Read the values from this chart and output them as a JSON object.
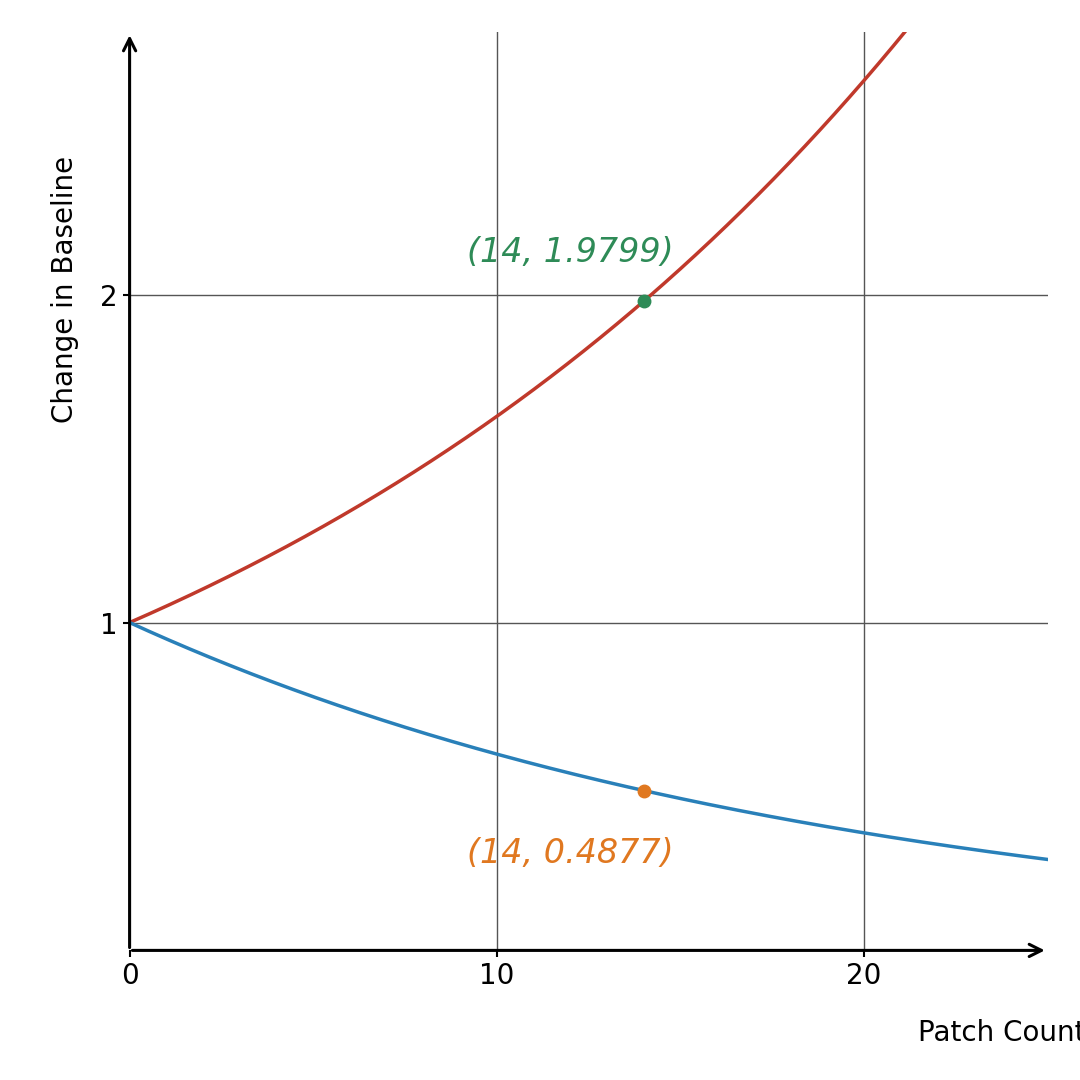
{
  "title": "",
  "xlabel": "Patch Count",
  "ylabel": "Change in Baseline",
  "x_min": 0,
  "x_max": 25,
  "y_min": 0,
  "y_max": 2.8,
  "x_ticks": [
    0,
    10,
    20
  ],
  "y_ticks": [
    1,
    2
  ],
  "growth_rate": 0.05,
  "decay_rate": 0.05,
  "highlight_x": 14,
  "green_point": [
    14,
    1.9799
  ],
  "orange_point": [
    14,
    0.4877
  ],
  "green_label": "(14, 1.9799)",
  "orange_label": "(14, 0.4877)",
  "red_color": "#c0392b",
  "blue_color": "#2980b9",
  "green_color": "#2e8b57",
  "orange_color": "#e07820",
  "line_width": 2.5,
  "annotation_fontsize": 24,
  "axis_label_fontsize": 20,
  "tick_fontsize": 20,
  "grid_color": "#555555",
  "grid_lw": 1.0,
  "background_color": "#ffffff"
}
